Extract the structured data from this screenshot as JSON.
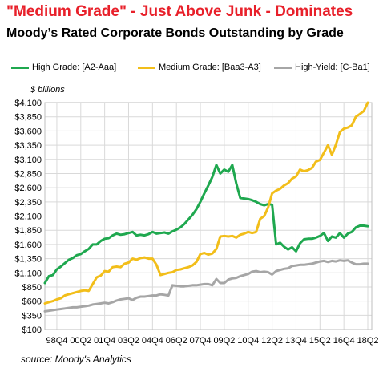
{
  "title": "\"Medium Grade\" - Just Above Junk - Dominates",
  "subtitle": "Moody’s Rated Corporate Bonds Outstanding by Grade",
  "unit_label": "$ billions",
  "source": "source: Moody's Analytics",
  "colors": {
    "high": "#1fa84f",
    "medium": "#f2be1a",
    "yield": "#a6a6a6",
    "title": "#e8202a",
    "grid": "#d9d9d9"
  },
  "chart_data": {
    "type": "line",
    "title": "Moody’s Rated Corporate Bonds Outstanding by Grade",
    "ylabel": "$ billions",
    "ylim": [
      100,
      4100
    ],
    "yticks": [
      100,
      350,
      600,
      850,
      1100,
      1350,
      1600,
      1850,
      2100,
      2350,
      2600,
      2850,
      3100,
      3350,
      3600,
      3850,
      4100
    ],
    "ytick_labels": [
      "$100",
      "$350",
      "$600",
      "$850",
      "$1,100",
      "$1,350",
      "$1,600",
      "$1,850",
      "$2,100",
      "$2,350",
      "$2,600",
      "$2,850",
      "$3,100",
      "$3,350",
      "$3,600",
      "$3,850",
      "$4,100"
    ],
    "xlim": [
      1998.0,
      2018.5
    ],
    "xticks": [
      1998.75,
      2000.25,
      2001.75,
      2003.25,
      2004.75,
      2006.25,
      2007.75,
      2009.25,
      2010.75,
      2012.25,
      2013.75,
      2015.25,
      2016.75,
      2018.25
    ],
    "xtick_labels": [
      "98Q4",
      "00Q2",
      "01Q4",
      "03Q2",
      "04Q4",
      "06Q2",
      "07Q4",
      "09Q2",
      "10Q4",
      "12Q2",
      "13Q4",
      "15Q2",
      "16Q4",
      "18Q2"
    ],
    "series": [
      {
        "name": "High Grade: [A2-Aaa]",
        "color": "#1fa84f",
        "x": [
          1998.0,
          1998.25,
          1998.5,
          1998.75,
          1999.0,
          1999.25,
          1999.5,
          1999.75,
          2000.0,
          2000.25,
          2000.5,
          2000.75,
          2001.0,
          2001.25,
          2001.5,
          2001.75,
          2002.0,
          2002.25,
          2002.5,
          2002.75,
          2003.0,
          2003.25,
          2003.5,
          2003.75,
          2004.0,
          2004.25,
          2004.5,
          2004.75,
          2005.0,
          2005.25,
          2005.5,
          2005.75,
          2006.0,
          2006.25,
          2006.5,
          2006.75,
          2007.0,
          2007.25,
          2007.5,
          2007.75,
          2008.0,
          2008.25,
          2008.5,
          2008.75,
          2009.0,
          2009.25,
          2009.5,
          2009.75,
          2010.0,
          2010.25,
          2010.5,
          2010.75,
          2011.0,
          2011.25,
          2011.5,
          2011.75,
          2012.0,
          2012.25,
          2012.5,
          2012.75,
          2013.0,
          2013.25,
          2013.5,
          2013.75,
          2014.0,
          2014.25,
          2014.5,
          2014.75,
          2015.0,
          2015.25,
          2015.5,
          2015.75,
          2016.0,
          2016.25,
          2016.5,
          2016.75,
          2017.0,
          2017.25,
          2017.5,
          2017.75,
          2018.0,
          2018.25
        ],
        "values": [
          920,
          1040,
          1060,
          1160,
          1210,
          1270,
          1330,
          1360,
          1410,
          1430,
          1480,
          1520,
          1600,
          1600,
          1660,
          1700,
          1710,
          1760,
          1790,
          1770,
          1780,
          1800,
          1820,
          1760,
          1770,
          1760,
          1780,
          1820,
          1790,
          1800,
          1810,
          1790,
          1830,
          1860,
          1900,
          1960,
          2040,
          2120,
          2220,
          2350,
          2500,
          2640,
          2790,
          3000,
          2850,
          2920,
          2880,
          3000,
          2680,
          2420,
          2410,
          2400,
          2380,
          2350,
          2310,
          2290,
          2310,
          2300,
          1600,
          1630,
          1560,
          1510,
          1550,
          1480,
          1620,
          1690,
          1700,
          1700,
          1720,
          1750,
          1800,
          1660,
          1740,
          1720,
          1800,
          1720,
          1790,
          1820,
          1900,
          1930,
          1930,
          1920
        ]
      },
      {
        "name": "Medium Grade: [Baa3-A3]",
        "color": "#f2be1a",
        "x": [
          1998.0,
          1998.25,
          1998.5,
          1998.75,
          1999.0,
          1999.25,
          1999.5,
          1999.75,
          2000.0,
          2000.25,
          2000.5,
          2000.75,
          2001.0,
          2001.25,
          2001.5,
          2001.75,
          2002.0,
          2002.25,
          2002.5,
          2002.75,
          2003.0,
          2003.25,
          2003.5,
          2003.75,
          2004.0,
          2004.25,
          2004.5,
          2004.75,
          2005.0,
          2005.25,
          2005.5,
          2005.75,
          2006.0,
          2006.25,
          2006.5,
          2006.75,
          2007.0,
          2007.25,
          2007.5,
          2007.75,
          2008.0,
          2008.25,
          2008.5,
          2008.75,
          2009.0,
          2009.25,
          2009.5,
          2009.75,
          2010.0,
          2010.25,
          2010.5,
          2010.75,
          2011.0,
          2011.25,
          2011.5,
          2011.75,
          2012.0,
          2012.25,
          2012.5,
          2012.75,
          2013.0,
          2013.25,
          2013.5,
          2013.75,
          2014.0,
          2014.25,
          2014.5,
          2014.75,
          2015.0,
          2015.25,
          2015.5,
          2015.75,
          2016.0,
          2016.25,
          2016.5,
          2016.75,
          2017.0,
          2017.25,
          2017.5,
          2017.75,
          2018.0,
          2018.25
        ],
        "values": [
          560,
          580,
          600,
          630,
          650,
          700,
          720,
          740,
          760,
          780,
          790,
          780,
          900,
          1020,
          1050,
          1130,
          1120,
          1200,
          1210,
          1200,
          1260,
          1280,
          1350,
          1330,
          1360,
          1370,
          1350,
          1350,
          1240,
          1060,
          1080,
          1100,
          1110,
          1150,
          1160,
          1180,
          1200,
          1230,
          1290,
          1430,
          1450,
          1420,
          1440,
          1520,
          1740,
          1750,
          1740,
          1750,
          1720,
          1770,
          1790,
          1820,
          1800,
          1820,
          2050,
          2100,
          2250,
          2500,
          2550,
          2580,
          2640,
          2680,
          2760,
          2800,
          2920,
          2890,
          2910,
          2950,
          3060,
          3090,
          3220,
          3350,
          3180,
          3360,
          3580,
          3640,
          3660,
          3700,
          3850,
          3900,
          3950,
          4100
        ]
      },
      {
        "name": "High-Yield: [C-Ba1]",
        "color": "#a6a6a6",
        "x": [
          1998.0,
          1998.25,
          1998.5,
          1998.75,
          1999.0,
          1999.25,
          1999.5,
          1999.75,
          2000.0,
          2000.25,
          2000.5,
          2000.75,
          2001.0,
          2001.25,
          2001.5,
          2001.75,
          2002.0,
          2002.25,
          2002.5,
          2002.75,
          2003.0,
          2003.25,
          2003.5,
          2003.75,
          2004.0,
          2004.25,
          2004.5,
          2004.75,
          2005.0,
          2005.25,
          2005.5,
          2005.75,
          2006.0,
          2006.25,
          2006.5,
          2006.75,
          2007.0,
          2007.25,
          2007.5,
          2007.75,
          2008.0,
          2008.25,
          2008.5,
          2008.75,
          2009.0,
          2009.25,
          2009.5,
          2009.75,
          2010.0,
          2010.25,
          2010.5,
          2010.75,
          2011.0,
          2011.25,
          2011.5,
          2011.75,
          2012.0,
          2012.25,
          2012.5,
          2012.75,
          2013.0,
          2013.25,
          2013.5,
          2013.75,
          2014.0,
          2014.25,
          2014.5,
          2014.75,
          2015.0,
          2015.25,
          2015.5,
          2015.75,
          2016.0,
          2016.25,
          2016.5,
          2016.75,
          2017.0,
          2017.25,
          2017.5,
          2017.75,
          2018.0,
          2018.25
        ],
        "values": [
          420,
          430,
          440,
          450,
          460,
          470,
          480,
          490,
          490,
          500,
          510,
          520,
          540,
          550,
          560,
          570,
          560,
          580,
          610,
          630,
          640,
          650,
          620,
          660,
          680,
          680,
          690,
          700,
          700,
          720,
          710,
          700,
          880,
          870,
          860,
          860,
          870,
          880,
          880,
          890,
          900,
          900,
          880,
          990,
          920,
          920,
          980,
          1000,
          1010,
          1040,
          1060,
          1080,
          1120,
          1130,
          1110,
          1120,
          1110,
          1070,
          1130,
          1150,
          1170,
          1180,
          1220,
          1230,
          1240,
          1240,
          1250,
          1260,
          1280,
          1300,
          1310,
          1290,
          1310,
          1300,
          1320,
          1310,
          1320,
          1280,
          1250,
          1250,
          1260,
          1260
        ]
      }
    ]
  }
}
